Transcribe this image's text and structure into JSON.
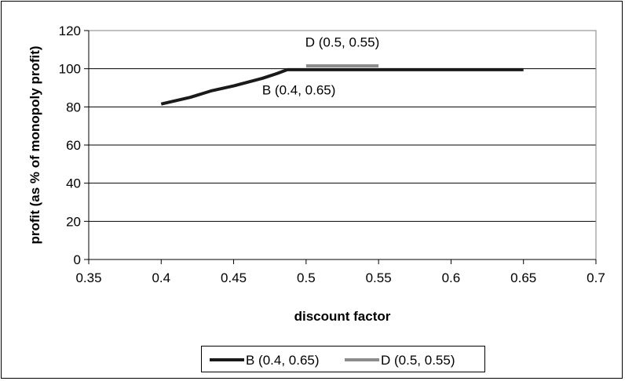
{
  "chart_data": {
    "type": "line",
    "xlabel": "discount factor",
    "ylabel": "profit (as % of monopoly profit)",
    "xlim": [
      0.35,
      0.7
    ],
    "ylim": [
      0,
      120
    ],
    "x_ticks": [
      "0.35",
      "0.4",
      "0.45",
      "0.5",
      "0.55",
      "0.6",
      "0.65",
      "0.7"
    ],
    "y_ticks": [
      "0",
      "20",
      "40",
      "60",
      "80",
      "100",
      "120"
    ],
    "grid": "horizontal",
    "legend_placement": "bottom",
    "series": [
      {
        "name": "B (0.4, 0.65)",
        "color": "#1a1a1a",
        "points": [
          [
            0.4,
            81.5
          ],
          [
            0.42,
            85
          ],
          [
            0.435,
            88.5
          ],
          [
            0.45,
            91
          ],
          [
            0.47,
            95
          ],
          [
            0.48,
            97.5
          ],
          [
            0.487,
            99.5
          ],
          [
            0.5,
            99.5
          ],
          [
            0.55,
            99.5
          ],
          [
            0.6,
            99.5
          ],
          [
            0.65,
            99.5
          ]
        ]
      },
      {
        "name": "D (0.5, 0.55)",
        "color": "#8c8c8c",
        "points": [
          [
            0.5,
            101.5
          ],
          [
            0.55,
            101.5
          ]
        ]
      }
    ],
    "annotations": [
      {
        "text": "D (0.5, 0.55)",
        "x": 0.525,
        "y": 114
      },
      {
        "text": "B (0.4, 0.65)",
        "x": 0.495,
        "y": 89
      }
    ]
  }
}
